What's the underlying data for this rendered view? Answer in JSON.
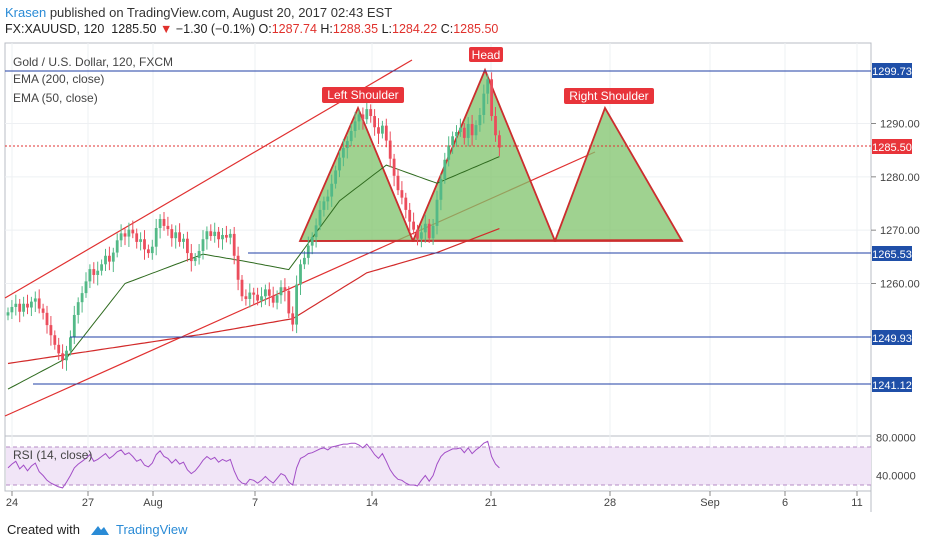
{
  "header": {
    "author": "Krasen",
    "published": "published on TradingView.com, August 20, 2017 02:43 EST"
  },
  "quote": {
    "symbol": "FX:XAUUSD, 120",
    "last": "1285.50",
    "change": "−1.30 (−0.1%)",
    "o_label": "O:",
    "o": "1287.74",
    "h_label": "H:",
    "h": "1288.35",
    "l_label": "L:",
    "l": "1284.22",
    "c_label": "C:",
    "c": "1285.50"
  },
  "legend": {
    "title": "Gold / U.S. Dollar, 120, FXCM",
    "ema200": "EMA (200, close)",
    "ema50": "EMA (50, close)",
    "rsi": "RSI (14, close)"
  },
  "annotations": {
    "left_shoulder": "Left Shoulder",
    "head": "Head",
    "right_shoulder": "Right Shoulder"
  },
  "footer": {
    "created_with": "Created with",
    "brand": "TradingView"
  },
  "colors": {
    "up": "#53b987",
    "down": "#eb4d5c",
    "ema200": "#d22a2a",
    "ema50": "#2f6b1f",
    "hline": "#1f3fa6",
    "channel": "#e03030",
    "pattern_fill": "#7fc36b",
    "pattern_stroke": "#cc2e2e",
    "rsi_line": "#a24ec7",
    "rsi_band": "#f1e5f7",
    "label_bg": "#e8343a",
    "price_tag": "#1f4fa8"
  },
  "chart_data": {
    "type": "candlestick",
    "y_range": [
      1235,
      1305
    ],
    "y_ticks": [
      1260,
      1270,
      1280,
      1290
    ],
    "price_labels": [
      "1299.73",
      "1285.50",
      "1265.53",
      "1249.93",
      "1241.12"
    ],
    "horizontal_levels": [
      1299.73,
      1265.53,
      1249.93,
      1241.12
    ],
    "current_price": 1285.5,
    "x_tick_labels": [
      "24",
      "27",
      "Aug",
      "7",
      "14",
      "21",
      "28",
      "Sep",
      "6",
      "11"
    ],
    "closes": [
      1254.6,
      1255.6,
      1256.2,
      1254.7,
      1256.2,
      1255.5,
      1256.6,
      1257.2,
      1255.3,
      1254.5,
      1252.2,
      1250.3,
      1248.5,
      1246.9,
      1245.6,
      1247.4,
      1249.9,
      1254.1,
      1256.5,
      1258.2,
      1260.4,
      1262.7,
      1261.6,
      1262.4,
      1263.6,
      1265.2,
      1264.1,
      1265.8,
      1268.1,
      1269.4,
      1268.8,
      1270.1,
      1269.4,
      1267.8,
      1268.3,
      1266.4,
      1265.7,
      1266.9,
      1270.4,
      1272.1,
      1270.8,
      1270.2,
      1268.5,
      1269.6,
      1267.8,
      1268.4,
      1265.7,
      1264.2,
      1264.8,
      1266.1,
      1268.3,
      1269.8,
      1268.9,
      1269.7,
      1268.3,
      1269.1,
      1268.6,
      1269.3,
      1265.2,
      1260.7,
      1257.6,
      1257.1,
      1258.3,
      1257.9,
      1256.8,
      1257.6,
      1258.9,
      1257.7,
      1256.4,
      1257.8,
      1259.3,
      1258.6,
      1254.4,
      1252.3,
      1259.8,
      1263.6,
      1264.8,
      1267.1,
      1268.7,
      1270.9,
      1273.8,
      1275.4,
      1276.3,
      1278.7,
      1281.2,
      1283.6,
      1285.4,
      1286.7,
      1288.6,
      1290.4,
      1291.7,
      1290.8,
      1292.7,
      1291.4,
      1289.3,
      1288.1,
      1289.6,
      1286.8,
      1283.4,
      1280.2,
      1277.5,
      1276.1,
      1273.8,
      1271.6,
      1270.1,
      1268.4,
      1269.6,
      1271.2,
      1268.5,
      1270.8,
      1275.7,
      1279.6,
      1283.2,
      1285.9,
      1287.6,
      1288.4,
      1289.2,
      1287.3,
      1289.9,
      1287.8,
      1289.7,
      1291.6,
      1295.6,
      1298.3,
      1291.4,
      1287.8,
      1285.5
    ],
    "rsi": {
      "range": [
        25,
        85
      ],
      "ticks": [
        40,
        80
      ],
      "tick_labels": [
        "40.0000",
        "80.0000"
      ],
      "band": [
        30,
        70
      ],
      "values": [
        48,
        52,
        55,
        47,
        51,
        45,
        50,
        53,
        44,
        40,
        35,
        32,
        30,
        28,
        27,
        33,
        40,
        48,
        52,
        55,
        58,
        62,
        55,
        57,
        60,
        63,
        58,
        61,
        65,
        67,
        62,
        64,
        60,
        55,
        57,
        51,
        49,
        53,
        62,
        66,
        60,
        58,
        53,
        57,
        52,
        54,
        46,
        42,
        45,
        50,
        56,
        60,
        57,
        59,
        54,
        57,
        55,
        57,
        45,
        36,
        32,
        31,
        36,
        35,
        32,
        35,
        39,
        35,
        32,
        37,
        42,
        40,
        33,
        30,
        48,
        58,
        60,
        63,
        64,
        66,
        68,
        69,
        67,
        70,
        71,
        72,
        73,
        73,
        74,
        74,
        72,
        69,
        73,
        68,
        62,
        58,
        63,
        55,
        46,
        40,
        36,
        35,
        32,
        30,
        30,
        29,
        35,
        40,
        34,
        40,
        52,
        60,
        64,
        66,
        68,
        68,
        69,
        64,
        69,
        63,
        67,
        70,
        74,
        76,
        60,
        52,
        48
      ]
    },
    "ema200_anchors": [
      [
        0,
        1245.0
      ],
      [
        50,
        1250.5
      ],
      [
        73,
        1253.4
      ],
      [
        92,
        1262.0
      ],
      [
        110,
        1265.8
      ],
      [
        126,
        1270.3
      ]
    ],
    "ema50_anchors": [
      [
        0,
        1240.2
      ],
      [
        15,
        1246.0
      ],
      [
        30,
        1260.0
      ],
      [
        50,
        1265.5
      ],
      [
        62,
        1264.0
      ],
      [
        72,
        1262.6
      ],
      [
        85,
        1275.5
      ],
      [
        97,
        1282.2
      ],
      [
        110,
        1278.8
      ],
      [
        126,
        1283.8
      ]
    ]
  }
}
